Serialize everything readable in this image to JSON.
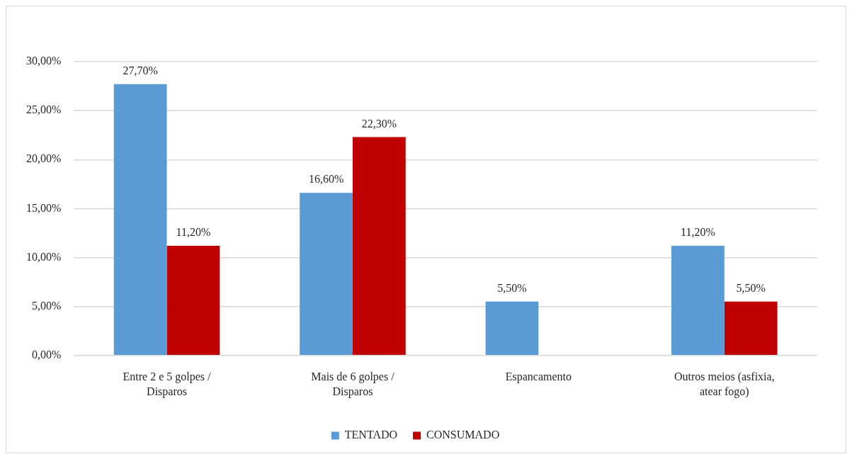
{
  "chart_data": {
    "type": "bar",
    "categories": [
      "Entre 2 e 5 golpes / Disparos",
      "Mais de 6 golpes / Disparos",
      "Espancamento",
      "Outros meios (asfixia, atear fogo)"
    ],
    "series": [
      {
        "name": "TENTADO",
        "color": "#5b9bd5",
        "values": [
          27.7,
          16.6,
          5.5,
          11.2
        ],
        "value_labels": [
          "27,70%",
          "16,60%",
          "5,50%",
          "11,20%"
        ]
      },
      {
        "name": "CONSUMADO",
        "color": "#c00000",
        "values": [
          11.2,
          22.3,
          null,
          5.5
        ],
        "value_labels": [
          "11,20%",
          "22,30%",
          null,
          "5,50%"
        ]
      }
    ],
    "ylim": [
      0,
      30
    ],
    "yticks": [
      {
        "value": 0,
        "label": "0,00%"
      },
      {
        "value": 5,
        "label": "5,00%"
      },
      {
        "value": 10,
        "label": "10,00%"
      },
      {
        "value": 15,
        "label": "15,00%"
      },
      {
        "value": 20,
        "label": "20,00%"
      },
      {
        "value": 25,
        "label": "25,00%"
      },
      {
        "value": 30,
        "label": "30,00%"
      }
    ],
    "grid": "y",
    "legend": "bottom"
  }
}
